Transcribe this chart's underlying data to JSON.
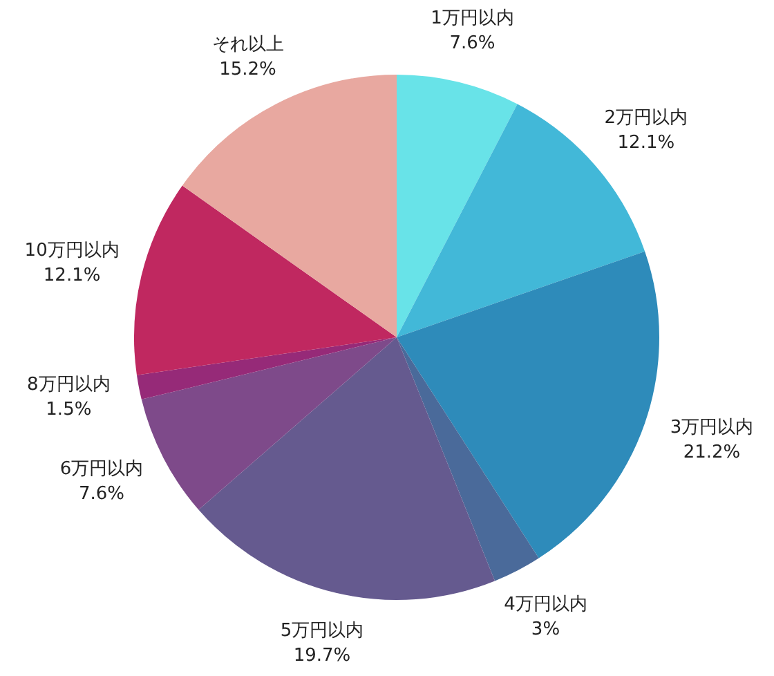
{
  "chart_data": {
    "type": "pie",
    "categories": [
      "1万円以内",
      "2万円以内",
      "3万円以内",
      "4万円以内",
      "5万円以内",
      "6万円以内",
      "8万円以内",
      "10万円以内",
      "それ以上"
    ],
    "values": [
      7.6,
      12.1,
      21.2,
      3,
      19.7,
      7.6,
      1.5,
      12.1,
      15.2
    ],
    "value_labels": [
      "7.6%",
      "12.1%",
      "21.2%",
      "3%",
      "19.7%",
      "7.6%",
      "1.5%",
      "12.1%",
      "15.2%"
    ],
    "colors": [
      "#68e3e8",
      "#42b8d8",
      "#2e8bba",
      "#4a6a9a",
      "#655a8f",
      "#7e4a8a",
      "#962a78",
      "#c02860",
      "#e8a8a0"
    ],
    "legend": false
  }
}
